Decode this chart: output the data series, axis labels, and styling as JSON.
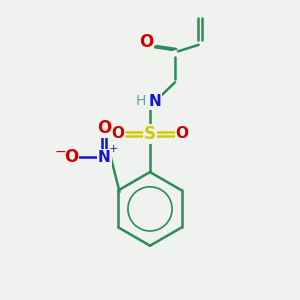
{
  "background_color": "#f0f2f0",
  "colors": {
    "C": "#2e8b57",
    "H": "#6c9e9e",
    "N": "#1414cc",
    "O": "#cc0000",
    "S": "#cccc00",
    "bond": "#2e8b57"
  },
  "fig_width": 3.0,
  "fig_height": 3.0,
  "dpi": 100
}
